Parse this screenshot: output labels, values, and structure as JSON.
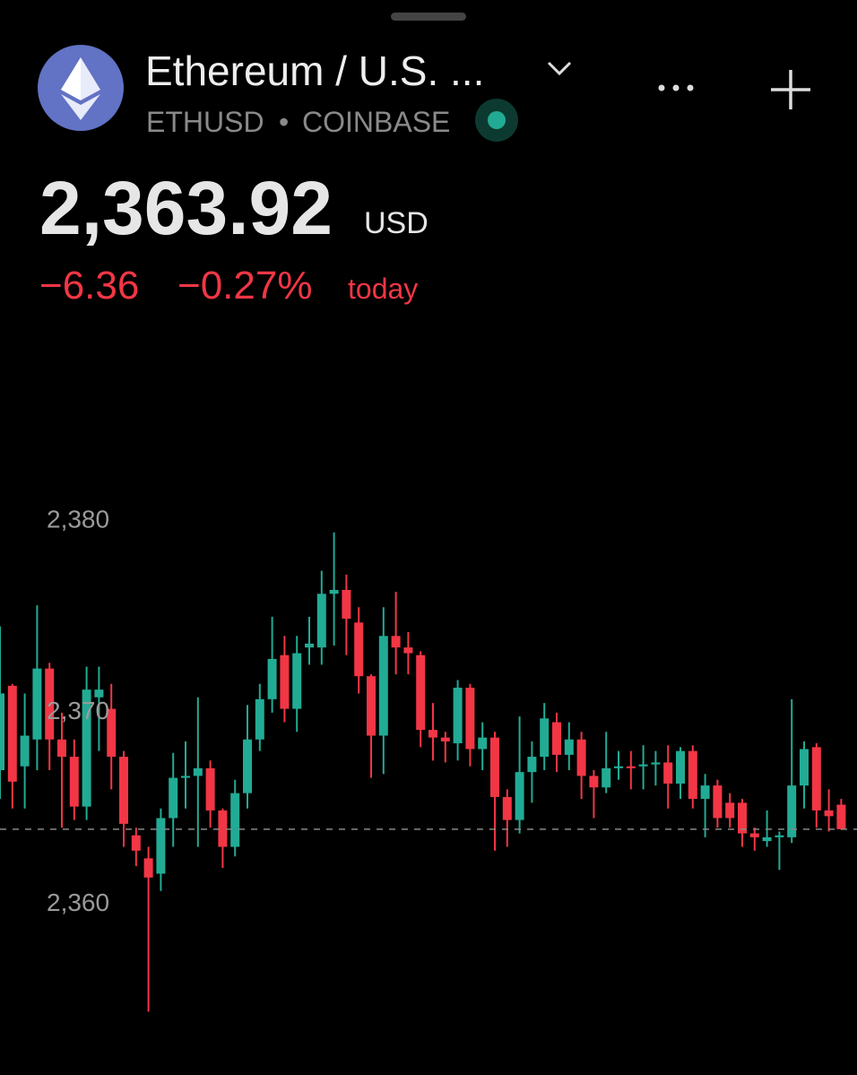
{
  "header": {
    "title": "Ethereum / U.S. ...",
    "symbol": "ETHUSD",
    "separator": "•",
    "exchange": "COINBASE",
    "price": "2,363.92",
    "currency": "USD",
    "change": "−6.36",
    "change_percent": "−0.27%",
    "period": "today"
  },
  "chart_data": {
    "type": "candlestick",
    "ylim": [
      2351.1,
      2389.4
    ],
    "yticks": [
      {
        "value": 2380,
        "label": "2,380"
      },
      {
        "value": 2370,
        "label": "2,370"
      },
      {
        "value": 2360,
        "label": "2,360"
      }
    ],
    "last_price": 2363.92,
    "up_color": "#22ab94",
    "down_color": "#f23645",
    "open": [
      2367,
      2371.4,
      2367.2,
      2368.6,
      2372.3,
      2368.6,
      2367.7,
      2365.1,
      2370.8,
      2370.2,
      2367.7,
      2363.6,
      2362.4,
      2361.6,
      2364.5,
      2366.6,
      2366.7,
      2367.1,
      2364.9,
      2363,
      2365.8,
      2368.6,
      2370.7,
      2373,
      2370.2,
      2373.4,
      2373.4,
      2376.2,
      2376.4,
      2374.7,
      2371.9,
      2368.8,
      2374,
      2373.4,
      2373,
      2369.1,
      2368.7,
      2368.4,
      2371.3,
      2368.1,
      2368.7,
      2365.6,
      2364.4,
      2366.9,
      2367.7,
      2369.5,
      2367.8,
      2368.6,
      2366.7,
      2366.1,
      2367.1,
      2367.2,
      2367.2,
      2367.3,
      2367.4,
      2366.3,
      2368,
      2365.5,
      2366.2,
      2365.3,
      2365.3,
      2363.7,
      2363.3,
      2363.5,
      2363.5,
      2366.2,
      2368.2,
      2364.9,
      2365.2
    ],
    "high": [
      2374.5,
      2371.5,
      2371,
      2375.6,
      2372.6,
      2370,
      2368.6,
      2372.4,
      2372.4,
      2371.5,
      2368,
      2364,
      2363,
      2365,
      2367.9,
      2368.5,
      2370.8,
      2367.5,
      2365,
      2366.5,
      2370.4,
      2371.5,
      2375,
      2374,
      2374,
      2375,
      2377.4,
      2379.4,
      2377.2,
      2375.5,
      2372,
      2375.5,
      2376.3,
      2374.2,
      2373.2,
      2370.5,
      2369,
      2371.7,
      2371.5,
      2369.5,
      2369,
      2366,
      2369.8,
      2368.5,
      2370.5,
      2370,
      2369.5,
      2369,
      2367,
      2369,
      2368,
      2368,
      2368.3,
      2368,
      2368.3,
      2368.2,
      2368.3,
      2366.8,
      2366.5,
      2365.8,
      2365.5,
      2364,
      2364.9,
      2363.8,
      2370.7,
      2368.5,
      2368.4,
      2366,
      2365.5
    ],
    "low": [
      2365.5,
      2365,
      2365,
      2367,
      2367,
      2364,
      2364.4,
      2364.4,
      2368,
      2366,
      2363,
      2362,
      2354.4,
      2360.7,
      2363,
      2365,
      2363,
      2364,
      2361.9,
      2362.5,
      2365,
      2368,
      2370,
      2369.5,
      2369,
      2372.5,
      2372.5,
      2373.5,
      2373,
      2371,
      2366.6,
      2366.8,
      2372,
      2372,
      2368.2,
      2367.5,
      2367.4,
      2367.5,
      2367.2,
      2367,
      2362.8,
      2363,
      2363.7,
      2365.3,
      2367,
      2366.9,
      2367,
      2365.5,
      2364.5,
      2365.8,
      2366.5,
      2366,
      2366,
      2366.2,
      2365,
      2365.5,
      2365,
      2363.5,
      2364,
      2364,
      2363,
      2362.8,
      2363,
      2361.8,
      2363.2,
      2365,
      2364,
      2363.8,
      2363.9
    ],
    "close": [
      2371,
      2366.4,
      2368.8,
      2372.3,
      2368.6,
      2367.7,
      2365.1,
      2371.2,
      2371.2,
      2367.7,
      2364.2,
      2362.8,
      2361.4,
      2364.5,
      2366.6,
      2366.7,
      2367.1,
      2364.9,
      2363,
      2365.8,
      2368.6,
      2370.7,
      2372.8,
      2370.2,
      2373.1,
      2373.6,
      2376.2,
      2376.4,
      2374.9,
      2371.9,
      2368.8,
      2374,
      2373.4,
      2373.1,
      2369.1,
      2368.7,
      2368.5,
      2371.3,
      2368.1,
      2368.7,
      2365.6,
      2364.4,
      2366.9,
      2367.7,
      2369.7,
      2367.8,
      2368.6,
      2366.7,
      2366.1,
      2367.1,
      2367.2,
      2367.1,
      2367.3,
      2367.4,
      2366.3,
      2368,
      2365.5,
      2366.2,
      2364.5,
      2364.5,
      2363.7,
      2363.5,
      2363.5,
      2363.6,
      2366.2,
      2368.1,
      2364.9,
      2364.6,
      2363.92
    ]
  }
}
